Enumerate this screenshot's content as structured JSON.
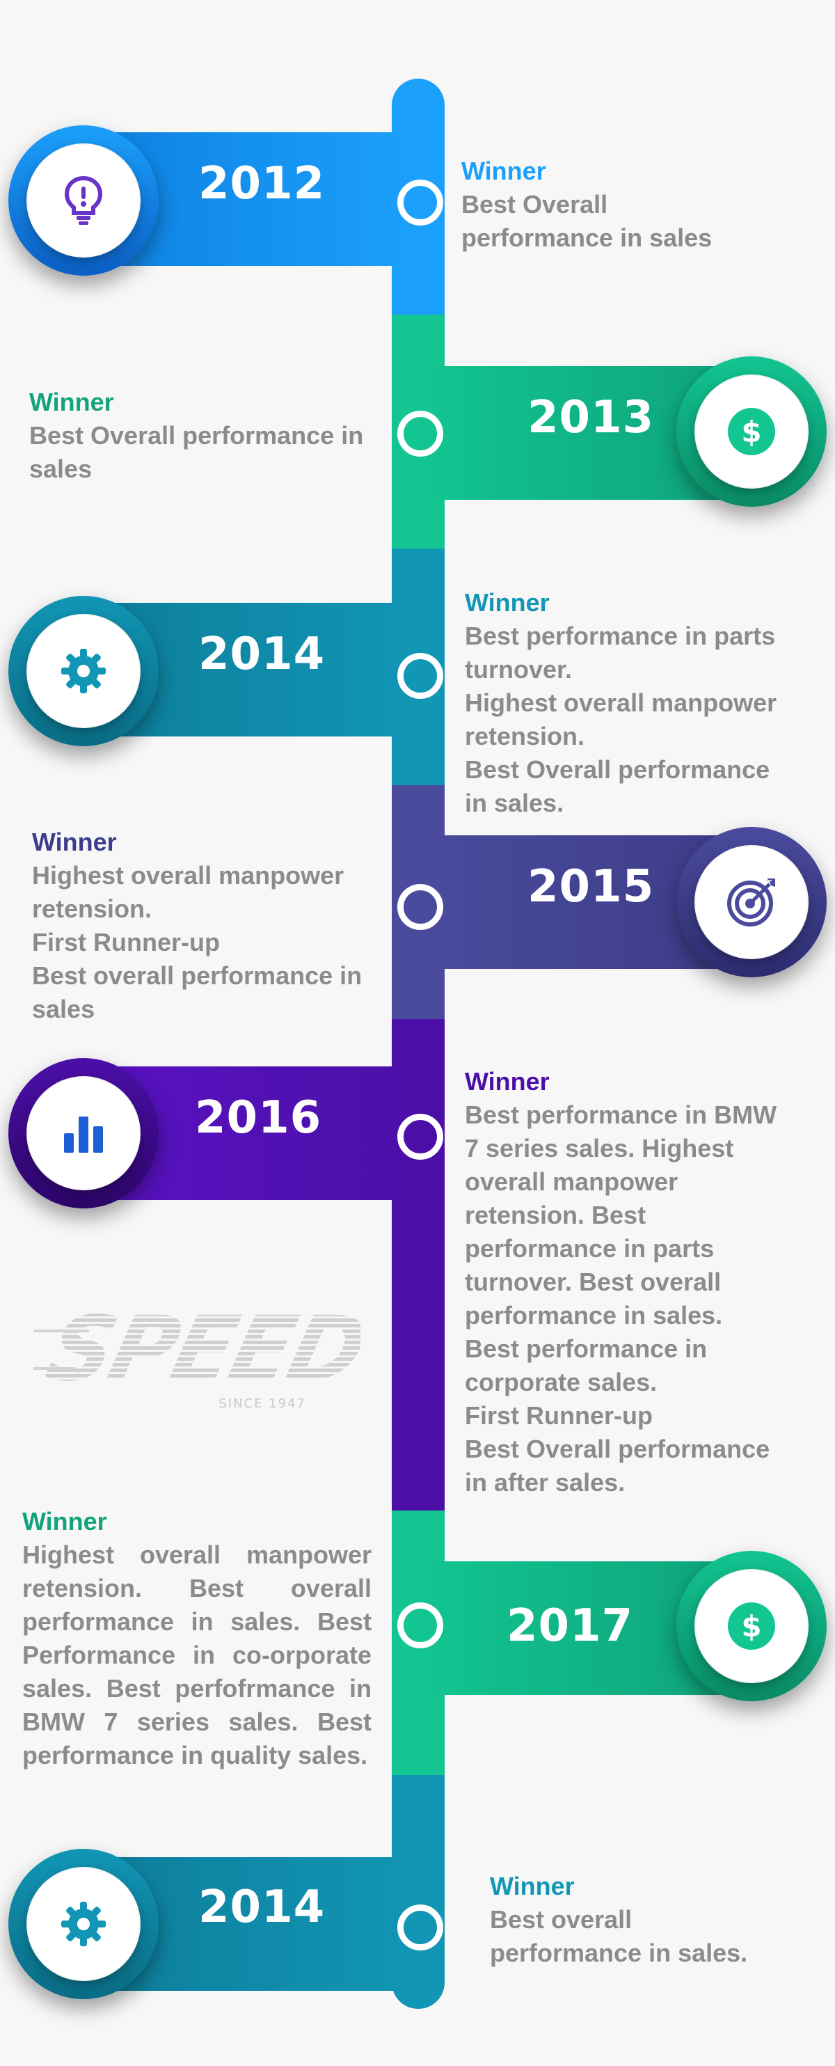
{
  "colors": {
    "blue": "#1ba0fb",
    "green": "#12c591",
    "teal": "#1196b5",
    "navy": "#4b4b9e",
    "purple": "#4b0fa8",
    "text_gray": "#8b8b8b"
  },
  "entries": [
    {
      "year": "2012",
      "icon": "lightbulb-icon",
      "title": "Winner",
      "lines": [
        "Best Overall",
        "performance in sales"
      ]
    },
    {
      "year": "2013",
      "icon": "dollar-icon",
      "title": "Winner",
      "lines": [
        "Best Overall performance in",
        "sales"
      ]
    },
    {
      "year": "2014",
      "icon": "gear-icon",
      "title": "Winner",
      "lines": [
        "Best performance in parts",
        "turnover.",
        "Highest overall manpower",
        "retension.",
        "Best Overall performance",
        "in sales."
      ]
    },
    {
      "year": "2015",
      "icon": "target-icon",
      "title": "Winner",
      "lines": [
        "Highest overall manpower",
        "retension.",
        "First Runner-up",
        "Best overall performance in",
        "sales"
      ]
    },
    {
      "year": "2016",
      "icon": "bar-chart-icon",
      "title": "Winner",
      "lines": [
        "Best performance in BMW",
        "7 series sales. Highest",
        "overall manpower",
        "retension. Best",
        "performance in parts",
        "turnover. Best overall",
        "performance in sales.",
        "Best performance in",
        "corporate sales.",
        "First Runner-up",
        "Best Overall performance",
        "in after sales."
      ]
    },
    {
      "year": "2017",
      "icon": "dollar-icon",
      "title": "Winner",
      "text": "Highest overall manpower retension. Best overall performance in sales. Best Performance in co-orporate sales. Best perfofrmance in BMW 7 series sales. Best performance in quality sales."
    },
    {
      "year": "2014",
      "icon": "gear-icon",
      "title": "Winner",
      "lines": [
        "Best overall",
        "performance in sales."
      ]
    }
  ],
  "logo": {
    "name": "SPEED",
    "since": "SINCE  1947"
  }
}
